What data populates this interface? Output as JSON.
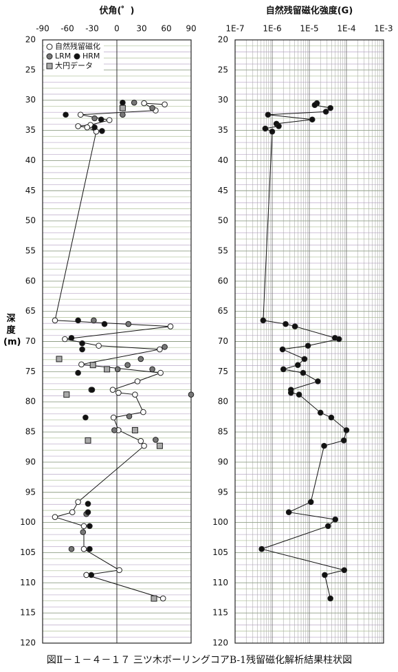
{
  "caption": "図Ⅱ－１－４－１７ 三ツ木ボーリングコアB-1残留磁化解析結果柱状図",
  "chart_data": [
    {
      "type": "scatter",
      "title": "伏角(゜)",
      "ylabel": "深度(m)",
      "xlim": [
        -90,
        90
      ],
      "xticks": [
        -90,
        -60,
        -30,
        0,
        30,
        60,
        90
      ],
      "ylim": [
        20,
        120
      ],
      "y_reversed": true,
      "yticks": [
        20,
        25,
        30,
        35,
        40,
        45,
        50,
        55,
        60,
        65,
        70,
        75,
        80,
        85,
        90,
        95,
        100,
        105,
        110,
        115,
        120
      ],
      "grid": true,
      "xgrid": false,
      "legend": "upper left",
      "series": [
        {
          "name": "自然残留磁化",
          "color": "#ffffff",
          "marker": "circle",
          "line": true,
          "x": [
            58,
            33,
            47,
            -44,
            -9,
            -32,
            -47,
            -36,
            -25,
            -75,
            65,
            -63,
            -22,
            52,
            -43,
            53,
            25,
            -5,
            2,
            22,
            32,
            -4,
            2,
            29,
            33,
            -47,
            -54,
            -75,
            -40,
            -40,
            3,
            -37,
            56
          ],
          "values": [
            30.7,
            30.5,
            31.7,
            32.4,
            33.3,
            34.1,
            34.3,
            34.5,
            35.2,
            66.5,
            67.5,
            69.6,
            70.7,
            71.3,
            73.8,
            75.2,
            76.6,
            78.0,
            78.5,
            78.8,
            81.7,
            82.6,
            84.7,
            86.5,
            87.3,
            96.6,
            98.3,
            99.1,
            100.6,
            104.4,
            107.9,
            108.7,
            112.6
          ]
        },
        {
          "name": "LRM",
          "color": "#777777",
          "marker": "circle",
          "line": false,
          "x": [
            21,
            43,
            7,
            -27,
            -28,
            14,
            58,
            29,
            13,
            1,
            43,
            90,
            -31,
            15,
            -3,
            47,
            -37,
            -41,
            -55
          ],
          "values": [
            30.4,
            31.3,
            32.4,
            33.0,
            66.5,
            67.1,
            70.9,
            72.9,
            73.9,
            74.6,
            74.6,
            78.8,
            78.0,
            82.4,
            84.7,
            86.3,
            98.6,
            101.6,
            104.4
          ]
        },
        {
          "name": "HRM",
          "color": "#111111",
          "marker": "circle",
          "line": false,
          "x": [
            7,
            -62,
            -19,
            -27,
            -18,
            -47,
            -15,
            -55,
            -42,
            -42,
            -47,
            -30,
            -38,
            -35,
            -35,
            -33,
            -33,
            -31
          ],
          "values": [
            30.4,
            32.4,
            33.2,
            34.5,
            35.1,
            66.5,
            67.1,
            69.4,
            70.3,
            71.3,
            75.2,
            78.0,
            82.6,
            96.9,
            98.3,
            100.6,
            104.4,
            108.7
          ]
        },
        {
          "name": "大円データ",
          "color": "#aaaaaa",
          "marker": "square",
          "line": false,
          "x": [
            7,
            -70,
            -29,
            -12,
            -61,
            22,
            -35,
            52,
            45
          ],
          "values": [
            31.3,
            72.9,
            73.9,
            74.6,
            78.8,
            84.7,
            86.4,
            87.3,
            112.6
          ]
        }
      ]
    },
    {
      "type": "scatter",
      "title": "自然残留磁化強度(G)",
      "xscale": "log",
      "xlim": [
        1e-07,
        0.001
      ],
      "xticks": [
        {
          "value": 1e-07,
          "label": "1E-7"
        },
        {
          "value": 1e-06,
          "label": "1E-6"
        },
        {
          "value": 1e-05,
          "label": "1E-5"
        },
        {
          "value": 0.0001,
          "label": "1E-4"
        },
        {
          "value": 0.001,
          "label": "1E-3"
        }
      ],
      "ylim": [
        20,
        120
      ],
      "y_reversed": true,
      "yticks": [
        20,
        25,
        30,
        35,
        40,
        45,
        50,
        55,
        60,
        65,
        70,
        75,
        80,
        85,
        90,
        95,
        100,
        105,
        110,
        115,
        120
      ],
      "grid": true,
      "xgrid": true,
      "series": [
        {
          "color": "#111111",
          "marker": "circle",
          "line": true,
          "x": [
            1.6e-05,
            1.4e-05,
            3.7e-05,
            2.8e-05,
            7.7e-07,
            1.2e-05,
            1.3e-06,
            1.5e-06,
            6.5e-07,
            1e-06,
            5.7e-07,
            2.3e-06,
            4.1e-06,
            4.9e-05,
            6.3e-05,
            9.2e-06,
            1.9e-06,
            7.4e-06,
            4.9e-06,
            2e-06,
            6.8e-06,
            1.7e-05,
            3.2e-06,
            3.2e-06,
            5.3e-06,
            2e-05,
            3.9e-05,
            0.0001,
            8.5e-05,
            2.5e-05,
            1.1e-05,
            2.8e-06,
            5e-05,
            3.2e-05,
            5.2e-07,
            8.7e-05,
            2.6e-05,
            3.7e-05
          ],
          "values": [
            30.5,
            30.8,
            31.3,
            31.9,
            32.4,
            33.2,
            33.9,
            34.3,
            34.7,
            35.2,
            66.5,
            67.1,
            67.5,
            69.4,
            69.6,
            70.7,
            71.3,
            72.9,
            73.9,
            74.6,
            75.2,
            76.6,
            78.0,
            78.5,
            78.8,
            81.8,
            82.6,
            84.7,
            86.4,
            87.3,
            96.6,
            98.3,
            99.5,
            100.6,
            104.4,
            107.9,
            108.7,
            112.6
          ]
        }
      ]
    }
  ]
}
